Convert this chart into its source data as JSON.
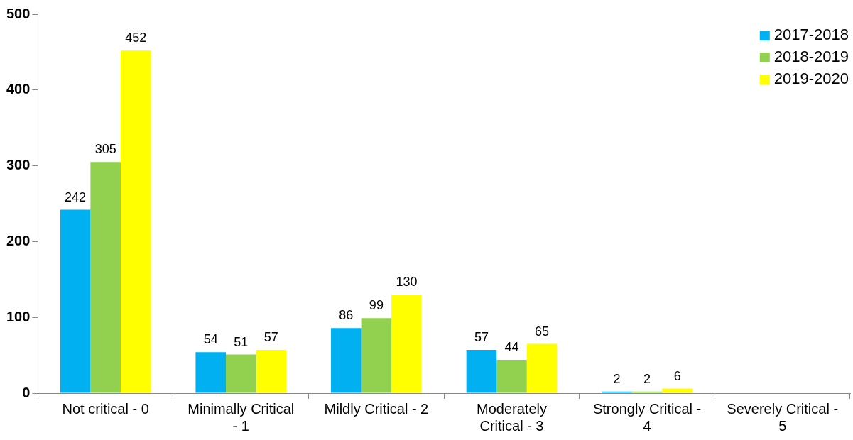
{
  "chart_data": {
    "type": "bar",
    "categories": [
      "Not critical - 0",
      "Minimally Critical - 1",
      "Mildly Critical - 2",
      "Moderately Critical - 3",
      "Strongly Critical - 4",
      "Severely Critical - 5"
    ],
    "series": [
      {
        "name": "2017-2018",
        "color": "#00b0f0",
        "values": [
          242,
          54,
          86,
          57,
          2,
          null
        ]
      },
      {
        "name": "2018-2019",
        "color": "#92d050",
        "values": [
          305,
          51,
          99,
          44,
          2,
          null
        ]
      },
      {
        "name": "2019-2020",
        "color": "#ffff00",
        "values": [
          452,
          57,
          130,
          65,
          6,
          null
        ]
      }
    ],
    "ylim": [
      0,
      500
    ],
    "yticks": [
      0,
      100,
      200,
      300,
      400,
      500
    ],
    "grid": false,
    "legend": "top right",
    "data_labels": true
  }
}
